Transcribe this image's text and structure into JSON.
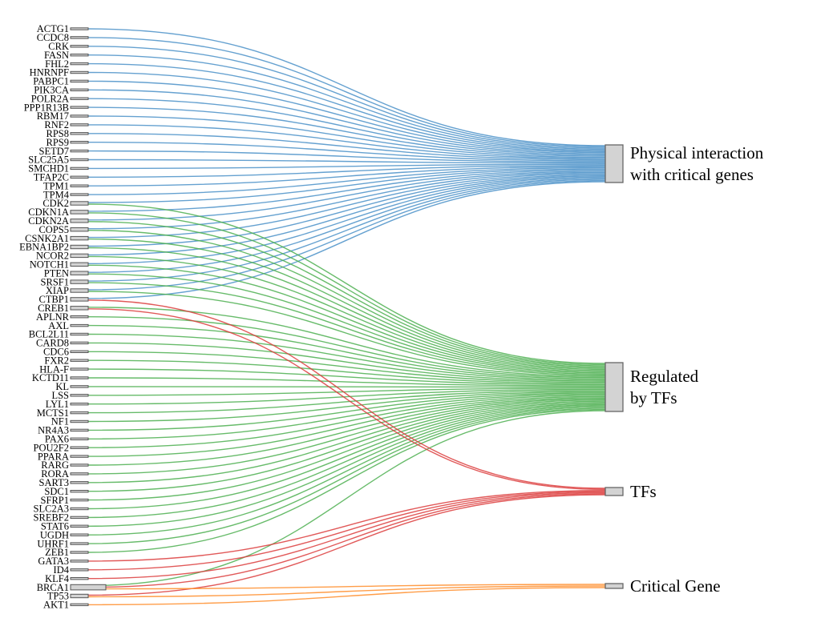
{
  "colors": {
    "physical": "#4a90c8",
    "regulated": "#4caf50",
    "tfs": "#dc3c3c",
    "critical": "#ff8c28"
  },
  "sources": [
    "ACTG1",
    "CCDC8",
    "CRK",
    "FASN",
    "FHL2",
    "HNRNPF",
    "PABPC1",
    "PIK3CA",
    "POLR2A",
    "PPP1R13B",
    "RBM17",
    "RNF2",
    "RPS8",
    "RPS9",
    "SETD7",
    "SLC25A5",
    "SMCHD1",
    "TFAP2C",
    "TPM1",
    "TPM4",
    "CDK2",
    "CDKN1A",
    "CDKN2A",
    "COPS5",
    "CSNK2A1",
    "EBNA1BP2",
    "NCOR2",
    "NOTCH1",
    "PTEN",
    "SRSF1",
    "XIAP",
    "CTBP1",
    "CREB1",
    "APLNR",
    "AXL",
    "BCL2L11",
    "CARD8",
    "CDC6",
    "FXR2",
    "HLA-F",
    "KCTD11",
    "KL",
    "LSS",
    "LYL1",
    "MCTS1",
    "NF1",
    "NR4A3",
    "PAX6",
    "POU2F2",
    "PPARA",
    "RARG",
    "RORA",
    "SART3",
    "SDC1",
    "SFRP1",
    "SLC2A3",
    "SREBF2",
    "STAT6",
    "UGDH",
    "UHRF1",
    "ZEB1",
    "GATA3",
    "ID4",
    "KLF4",
    "BRCA1",
    "TP53",
    "AKT1"
  ],
  "targets": [
    {
      "name": "Physical interaction with critical genes",
      "lines": [
        "Physical interaction",
        "with critical genes"
      ],
      "color_key": "physical"
    },
    {
      "name": "Regulated by TFs",
      "lines": [
        "Regulated",
        "by TFs"
      ],
      "color_key": "regulated"
    },
    {
      "name": "TFs",
      "lines": [
        "TFs"
      ],
      "color_key": "tfs"
    },
    {
      "name": "Critical Gene",
      "lines": [
        "Critical Gene"
      ],
      "color_key": "critical"
    }
  ],
  "links": [
    [
      "ACTG1",
      "Physical interaction with critical genes"
    ],
    [
      "CCDC8",
      "Physical interaction with critical genes"
    ],
    [
      "CRK",
      "Physical interaction with critical genes"
    ],
    [
      "FASN",
      "Physical interaction with critical genes"
    ],
    [
      "FHL2",
      "Physical interaction with critical genes"
    ],
    [
      "HNRNPF",
      "Physical interaction with critical genes"
    ],
    [
      "PABPC1",
      "Physical interaction with critical genes"
    ],
    [
      "PIK3CA",
      "Physical interaction with critical genes"
    ],
    [
      "POLR2A",
      "Physical interaction with critical genes"
    ],
    [
      "PPP1R13B",
      "Physical interaction with critical genes"
    ],
    [
      "RBM17",
      "Physical interaction with critical genes"
    ],
    [
      "RNF2",
      "Physical interaction with critical genes"
    ],
    [
      "RPS8",
      "Physical interaction with critical genes"
    ],
    [
      "RPS9",
      "Physical interaction with critical genes"
    ],
    [
      "SETD7",
      "Physical interaction with critical genes"
    ],
    [
      "SLC25A5",
      "Physical interaction with critical genes"
    ],
    [
      "SMCHD1",
      "Physical interaction with critical genes"
    ],
    [
      "TFAP2C",
      "Physical interaction with critical genes"
    ],
    [
      "TPM1",
      "Physical interaction with critical genes"
    ],
    [
      "TPM4",
      "Physical interaction with critical genes"
    ],
    [
      "CDK2",
      "Physical interaction with critical genes"
    ],
    [
      "CDKN1A",
      "Physical interaction with critical genes"
    ],
    [
      "CDKN2A",
      "Physical interaction with critical genes"
    ],
    [
      "COPS5",
      "Physical interaction with critical genes"
    ],
    [
      "CSNK2A1",
      "Physical interaction with critical genes"
    ],
    [
      "EBNA1BP2",
      "Physical interaction with critical genes"
    ],
    [
      "NCOR2",
      "Physical interaction with critical genes"
    ],
    [
      "NOTCH1",
      "Physical interaction with critical genes"
    ],
    [
      "PTEN",
      "Physical interaction with critical genes"
    ],
    [
      "SRSF1",
      "Physical interaction with critical genes"
    ],
    [
      "XIAP",
      "Physical interaction with critical genes"
    ],
    [
      "CTBP1",
      "Physical interaction with critical genes"
    ],
    [
      "CDK2",
      "Regulated by TFs"
    ],
    [
      "CDKN1A",
      "Regulated by TFs"
    ],
    [
      "CDKN2A",
      "Regulated by TFs"
    ],
    [
      "COPS5",
      "Regulated by TFs"
    ],
    [
      "CSNK2A1",
      "Regulated by TFs"
    ],
    [
      "EBNA1BP2",
      "Regulated by TFs"
    ],
    [
      "NCOR2",
      "Regulated by TFs"
    ],
    [
      "NOTCH1",
      "Regulated by TFs"
    ],
    [
      "PTEN",
      "Regulated by TFs"
    ],
    [
      "SRSF1",
      "Regulated by TFs"
    ],
    [
      "XIAP",
      "Regulated by TFs"
    ],
    [
      "CREB1",
      "Regulated by TFs"
    ],
    [
      "APLNR",
      "Regulated by TFs"
    ],
    [
      "AXL",
      "Regulated by TFs"
    ],
    [
      "BCL2L11",
      "Regulated by TFs"
    ],
    [
      "CARD8",
      "Regulated by TFs"
    ],
    [
      "CDC6",
      "Regulated by TFs"
    ],
    [
      "FXR2",
      "Regulated by TFs"
    ],
    [
      "HLA-F",
      "Regulated by TFs"
    ],
    [
      "KCTD11",
      "Regulated by TFs"
    ],
    [
      "KL",
      "Regulated by TFs"
    ],
    [
      "LSS",
      "Regulated by TFs"
    ],
    [
      "LYL1",
      "Regulated by TFs"
    ],
    [
      "MCTS1",
      "Regulated by TFs"
    ],
    [
      "NF1",
      "Regulated by TFs"
    ],
    [
      "NR4A3",
      "Regulated by TFs"
    ],
    [
      "PAX6",
      "Regulated by TFs"
    ],
    [
      "POU2F2",
      "Regulated by TFs"
    ],
    [
      "PPARA",
      "Regulated by TFs"
    ],
    [
      "RARG",
      "Regulated by TFs"
    ],
    [
      "RORA",
      "Regulated by TFs"
    ],
    [
      "SART3",
      "Regulated by TFs"
    ],
    [
      "SDC1",
      "Regulated by TFs"
    ],
    [
      "SFRP1",
      "Regulated by TFs"
    ],
    [
      "SLC2A3",
      "Regulated by TFs"
    ],
    [
      "SREBF2",
      "Regulated by TFs"
    ],
    [
      "STAT6",
      "Regulated by TFs"
    ],
    [
      "UGDH",
      "Regulated by TFs"
    ],
    [
      "UHRF1",
      "Regulated by TFs"
    ],
    [
      "ZEB1",
      "Regulated by TFs"
    ],
    [
      "BRCA1",
      "Regulated by TFs"
    ],
    [
      "CTBP1",
      "TFs"
    ],
    [
      "CREB1",
      "TFs"
    ],
    [
      "GATA3",
      "TFs"
    ],
    [
      "ID4",
      "TFs"
    ],
    [
      "KLF4",
      "TFs"
    ],
    [
      "BRCA1",
      "TFs"
    ],
    [
      "TP53",
      "TFs"
    ],
    [
      "BRCA1",
      "Critical Gene"
    ],
    [
      "TP53",
      "Critical Gene"
    ],
    [
      "AKT1",
      "Critical Gene"
    ]
  ]
}
